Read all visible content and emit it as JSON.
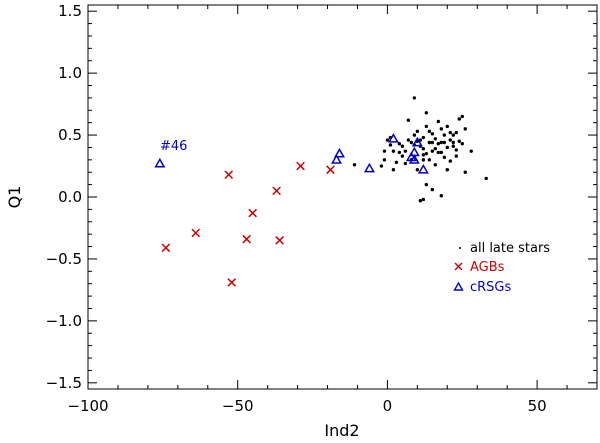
{
  "chart_data": {
    "type": "scatter",
    "title": "",
    "xlabel": "Ind2",
    "ylabel": "Q1",
    "xlim": [
      -100,
      70
    ],
    "ylim": [
      -1.55,
      1.55
    ],
    "x_ticks": [
      -100,
      -50,
      0,
      50
    ],
    "x_tick_labels": [
      "−100",
      "−50",
      "0",
      "50"
    ],
    "y_ticks": [
      -1.5,
      -1.0,
      -0.5,
      0.0,
      0.5,
      1.0,
      1.5
    ],
    "y_tick_labels": [
      "−1.5",
      "−1.0",
      "−0.5",
      "0.0",
      "0.5",
      "1.0",
      "1.5"
    ],
    "legend_position": "right",
    "series": [
      {
        "name": "all late stars",
        "marker": "dot",
        "color": "#000000",
        "points": [
          [
            -11,
            0.26
          ],
          [
            -2,
            0.25
          ],
          [
            -1,
            0.3
          ],
          [
            -1,
            0.37
          ],
          [
            0,
            0.46
          ],
          [
            1,
            0.42
          ],
          [
            2,
            0.37
          ],
          [
            3,
            0.28
          ],
          [
            4,
            0.43
          ],
          [
            5,
            0.33
          ],
          [
            6,
            0.27
          ],
          [
            7,
            0.62
          ],
          [
            8,
            0.44
          ],
          [
            8,
            0.3
          ],
          [
            9,
            0.8
          ],
          [
            9,
            0.5
          ],
          [
            9,
            0.42
          ],
          [
            10,
            0.22
          ],
          [
            10,
            0.53
          ],
          [
            11,
            0.41
          ],
          [
            12,
            -0.02
          ],
          [
            12,
            0.48
          ],
          [
            12,
            0.39
          ],
          [
            13,
            0.68
          ],
          [
            13,
            0.1
          ],
          [
            13,
            0.57
          ],
          [
            13,
            0.35
          ],
          [
            14,
            0.44
          ],
          [
            14,
            0.3
          ],
          [
            15,
            0.51
          ],
          [
            15,
            0.06
          ],
          [
            15,
            0.37
          ],
          [
            16,
            0.47
          ],
          [
            16,
            0.26
          ],
          [
            17,
            0.43
          ],
          [
            17,
            0.61
          ],
          [
            17,
            0.36
          ],
          [
            18,
            0.55
          ],
          [
            18,
            0.01
          ],
          [
            18,
            0.44
          ],
          [
            19,
            0.5
          ],
          [
            19,
            0.32
          ],
          [
            20,
            0.4
          ],
          [
            20,
            0.57
          ],
          [
            21,
            0.46
          ],
          [
            21,
            0.29
          ],
          [
            22,
            0.5
          ],
          [
            22,
            0.41
          ],
          [
            23,
            0.38
          ],
          [
            24,
            0.45
          ],
          [
            25,
            0.65
          ],
          [
            26,
            0.2
          ],
          [
            24,
            0.63
          ],
          [
            26,
            0.55
          ],
          [
            28,
            0.37
          ],
          [
            33,
            0.15
          ],
          [
            1,
            0.48
          ],
          [
            4,
            0.36
          ],
          [
            5,
            0.41
          ],
          [
            6,
            0.37
          ],
          [
            7,
            0.46
          ],
          [
            11,
            0.46
          ],
          [
            12,
            0.3
          ],
          [
            14,
            0.53
          ],
          [
            16,
            0.39
          ],
          [
            18,
            0.36
          ],
          [
            20,
            0.22
          ],
          [
            21,
            0.52
          ],
          [
            22,
            0.44
          ],
          [
            23,
            0.52
          ],
          [
            2,
            0.22
          ],
          [
            10,
            0.45
          ],
          [
            11,
            -0.03
          ],
          [
            12,
            0.34
          ],
          [
            15,
            0.44
          ],
          [
            19,
            0.44
          ],
          [
            23,
            0.33
          ],
          [
            25,
            0.43
          ]
        ]
      },
      {
        "name": "AGBs",
        "marker": "x",
        "color": "#cc0000",
        "points": [
          [
            -74,
            -0.41
          ],
          [
            -64,
            -0.29
          ],
          [
            -53,
            0.18
          ],
          [
            -52,
            -0.69
          ],
          [
            -47,
            -0.34
          ],
          [
            -45,
            -0.13
          ],
          [
            -37,
            0.05
          ],
          [
            -36,
            -0.35
          ],
          [
            -29,
            0.25
          ],
          [
            -19,
            0.22
          ]
        ]
      },
      {
        "name": "cRSGs",
        "marker": "triangle",
        "color": "#0000cc",
        "points": [
          [
            -76,
            0.27
          ],
          [
            -17,
            0.3
          ],
          [
            -16,
            0.35
          ],
          [
            -6,
            0.23
          ],
          [
            2,
            0.47
          ],
          [
            8,
            0.32
          ],
          [
            9,
            0.36
          ],
          [
            9,
            0.3
          ],
          [
            10,
            0.44
          ],
          [
            12,
            0.22
          ]
        ]
      }
    ],
    "annotations": [
      {
        "text": "#46",
        "x": -76,
        "y": 0.27,
        "color": "#0000cc"
      }
    ]
  }
}
